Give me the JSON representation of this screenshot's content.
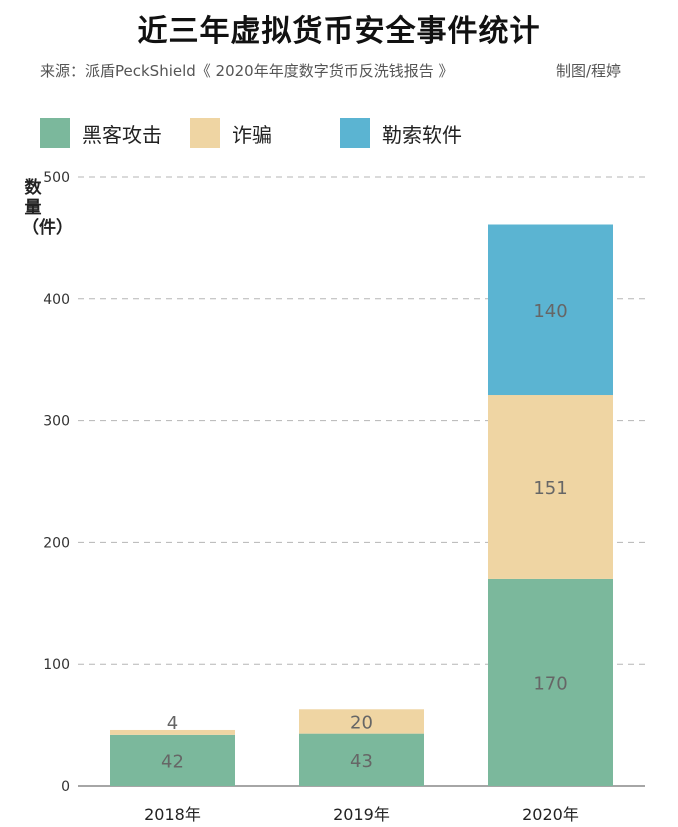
{
  "chart_data": {
    "type": "bar",
    "stacked": true,
    "title": "近三年虚拟货币安全事件统计",
    "subtitle": "来源：派盾PeckShield《 2020年年度数字货币反洗钱报告 》",
    "credit": "制图/程婷",
    "ylabel": "数量（件）",
    "xlabel": "",
    "ylim": [
      0,
      500
    ],
    "yticks": [
      "0",
      "100",
      "200",
      "300",
      "400",
      "500"
    ],
    "categories": [
      "2018年",
      "2019年",
      "2020年"
    ],
    "series": [
      {
        "name": "黑客攻击",
        "color": "#7bb89c",
        "values": [
          42,
          43,
          170
        ],
        "labels": [
          "42",
          "43",
          "170"
        ]
      },
      {
        "name": "诈骗",
        "color": "#efd5a3",
        "values": [
          4,
          20,
          151
        ],
        "labels": [
          "4",
          "20",
          "151"
        ]
      },
      {
        "name": "勒索软件",
        "color": "#5bb4d2",
        "values": [
          0,
          0,
          140
        ],
        "labels": [
          "",
          "",
          "140"
        ]
      }
    ],
    "grid": true,
    "legend": "top-left"
  }
}
